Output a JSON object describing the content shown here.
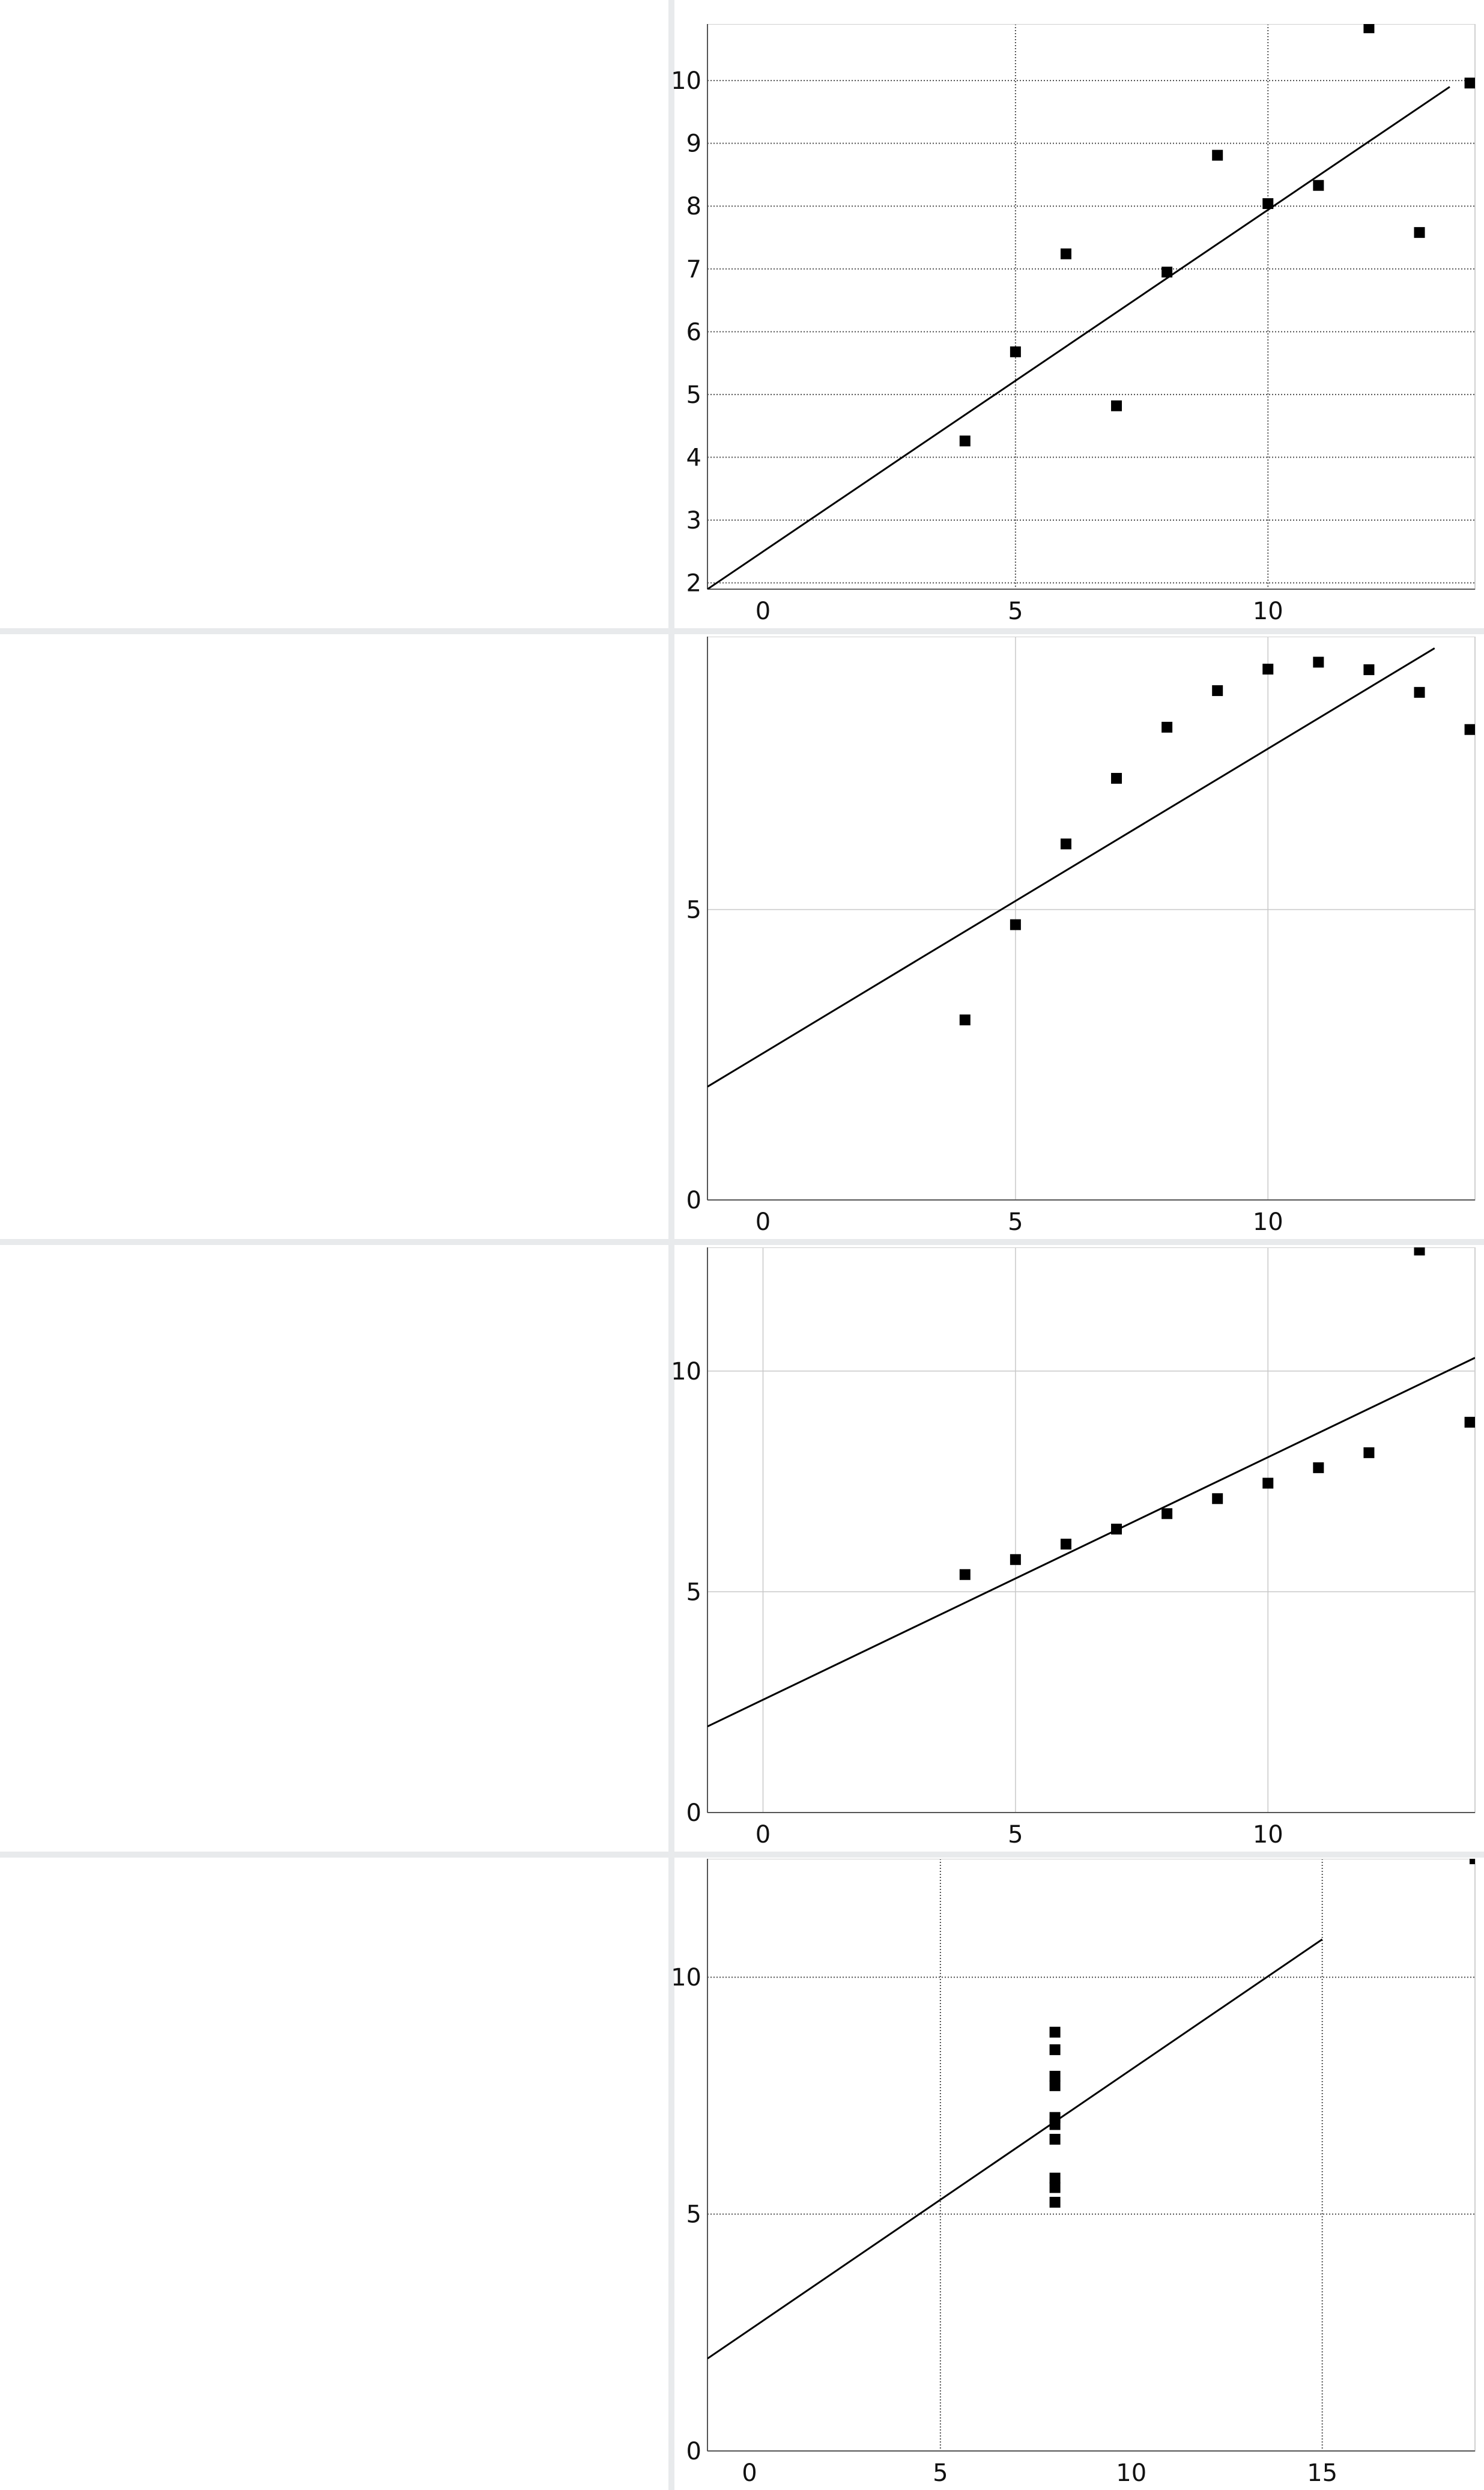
{
  "colors": {
    "background": "#ffffff",
    "divider": "#e8eaec",
    "point": "#000000",
    "fit_line": "#000000",
    "grid_major": "#505050",
    "grid_minor": "#c8c8c8",
    "heatmap_colormap": [
      "#000000",
      "#ff0000",
      "#ffff00",
      "#ffffff"
    ]
  },
  "heatmaps": [
    {
      "colormap": "hot"
    },
    {
      "colormap": "hot"
    },
    {
      "colormap": "hot"
    },
    {
      "colormap": "hot"
    }
  ],
  "chart_data": [
    {
      "type": "scatter",
      "title": "",
      "xlabel": "",
      "ylabel": "",
      "x": [
        4,
        5,
        6,
        7,
        8,
        9,
        10,
        11,
        12,
        13,
        14
      ],
      "y": [
        4.26,
        5.68,
        7.24,
        4.82,
        6.95,
        8.81,
        8.04,
        8.33,
        10.84,
        7.58,
        9.96
      ],
      "fit_line": {
        "x": [
          -1.1,
          13.6
        ],
        "y": [
          1.9,
          9.9
        ]
      },
      "xlim": [
        -1.1,
        14.1
      ],
      "ylim": [
        1.9,
        10.9
      ],
      "x_ticks": [
        0,
        5,
        10
      ],
      "y_ticks": [
        2,
        3,
        4,
        5,
        6,
        7,
        8,
        9,
        10
      ],
      "x_tick_labels": [
        "0",
        "5",
        "10"
      ],
      "y_tick_labels": [
        "2",
        "3",
        "4",
        "5",
        "6",
        "7",
        "8",
        "9",
        "10"
      ],
      "grid": "dotted",
      "x_grid": [
        5,
        10
      ],
      "y_grid": [
        2,
        3,
        4,
        5,
        6,
        7,
        8,
        9,
        10
      ]
    },
    {
      "type": "scatter",
      "title": "",
      "xlabel": "",
      "ylabel": "",
      "x": [
        4,
        5,
        6,
        7,
        8,
        9,
        10,
        11,
        12,
        13,
        14
      ],
      "y": [
        3.1,
        4.74,
        6.13,
        7.26,
        8.14,
        8.77,
        9.14,
        9.26,
        9.13,
        8.74,
        8.1
      ],
      "fit_line": {
        "x": [
          -1.1,
          13.3
        ],
        "y": [
          1.95,
          9.5
        ]
      },
      "xlim": [
        -1.1,
        14.1
      ],
      "ylim": [
        0,
        9.7
      ],
      "x_ticks": [
        0,
        5,
        10
      ],
      "y_ticks": [
        0,
        5
      ],
      "x_tick_labels": [
        "0",
        "5",
        "10"
      ],
      "y_tick_labels": [
        "0",
        "5"
      ],
      "grid": "light",
      "x_grid": [
        5,
        10
      ],
      "y_grid": [
        5
      ]
    },
    {
      "type": "scatter",
      "title": "",
      "xlabel": "",
      "ylabel": "",
      "x": [
        4,
        5,
        6,
        7,
        8,
        9,
        10,
        11,
        12,
        13,
        14
      ],
      "y": [
        5.39,
        5.73,
        6.08,
        6.42,
        6.77,
        7.11,
        7.46,
        7.81,
        8.15,
        12.74,
        8.84
      ],
      "fit_line": {
        "x": [
          -1.1,
          14.1
        ],
        "y": [
          1.95,
          10.3
        ]
      },
      "xlim": [
        -1.1,
        14.1
      ],
      "ylim": [
        0,
        12.8
      ],
      "x_ticks": [
        0,
        5,
        10
      ],
      "y_ticks": [
        0,
        5,
        10
      ],
      "x_tick_labels": [
        "0",
        "5",
        "10"
      ],
      "y_tick_labels": [
        "0",
        "5",
        "10"
      ],
      "grid": "light",
      "x_grid": [
        0,
        5,
        10
      ],
      "y_grid": [
        5,
        10
      ]
    },
    {
      "type": "scatter",
      "title": "",
      "xlabel": "",
      "ylabel": "",
      "x": [
        8,
        8,
        8,
        8,
        8,
        8,
        8,
        8,
        8,
        8,
        19
      ],
      "y": [
        6.58,
        5.76,
        7.71,
        8.84,
        8.47,
        7.04,
        5.25,
        5.56,
        7.91,
        6.89,
        12.5
      ],
      "fit_line": {
        "x": [
          -1.1,
          15.0
        ],
        "y": [
          1.95,
          10.8
        ]
      },
      "xlim": [
        -1.1,
        19.0
      ],
      "ylim": [
        0,
        12.5
      ],
      "x_ticks": [
        0,
        5,
        10,
        15
      ],
      "y_ticks": [
        0,
        5,
        10
      ],
      "x_tick_labels": [
        "0",
        "5",
        "10",
        "15"
      ],
      "y_tick_labels": [
        "0",
        "5",
        "10"
      ],
      "grid": "dotted",
      "x_grid": [
        5,
        15
      ],
      "y_grid": [
        5,
        10
      ]
    }
  ]
}
